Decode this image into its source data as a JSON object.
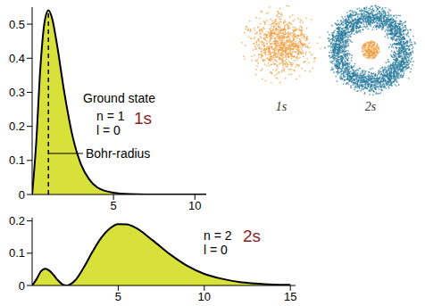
{
  "chart_data": [
    {
      "type": "area",
      "x": [
        0,
        0.25,
        0.5,
        0.75,
        1,
        1.25,
        1.5,
        2,
        2.5,
        3,
        3.5,
        4,
        5,
        6,
        7,
        8,
        9,
        10,
        10.7
      ],
      "values": [
        0,
        0.152,
        0.368,
        0.502,
        0.541,
        0.513,
        0.448,
        0.293,
        0.168,
        0.089,
        0.045,
        0.021,
        0.005,
        0.001,
        0,
        0,
        0,
        0,
        0
      ],
      "color": "#d8e03a",
      "xlim": [
        0,
        10.7
      ],
      "xticks": [
        5,
        10
      ],
      "ylim": [
        0,
        0.55
      ],
      "yticks": [
        0,
        0.1,
        0.2,
        0.3,
        0.4,
        0.5
      ],
      "grid": false,
      "annotations": [
        "Ground state",
        "n = 1",
        "l = 0"
      ],
      "orbital_label": "1s",
      "marker_line": {
        "label": "Bohr-radius",
        "x": 1
      }
    },
    {
      "type": "area",
      "x": [
        0,
        0.25,
        0.5,
        0.75,
        1,
        1.25,
        1.5,
        1.75,
        2,
        2.5,
        3,
        3.5,
        4,
        4.5,
        5,
        5.5,
        6,
        7,
        8,
        9,
        10,
        11,
        12,
        13,
        14,
        15
      ],
      "values": [
        0,
        0.019,
        0.043,
        0.052,
        0.046,
        0.032,
        0.016,
        0.004,
        0,
        0.016,
        0.056,
        0.104,
        0.147,
        0.176,
        0.19,
        0.189,
        0.179,
        0.14,
        0.097,
        0.061,
        0.036,
        0.021,
        0.011,
        0.006,
        0.003,
        0.002
      ],
      "color": "#d8e03a",
      "xlim": [
        0,
        15.3
      ],
      "xticks": [
        5,
        10,
        15
      ],
      "ylim": [
        0,
        0.21
      ],
      "yticks": [
        0,
        0.1,
        0.2
      ],
      "grid": false,
      "annotations": [
        "n = 2",
        "l = 0"
      ],
      "orbital_label": "2s"
    }
  ],
  "orbital_images": [
    {
      "label": "1s",
      "color": "#f0a043"
    },
    {
      "label": "2s",
      "color": "#2b7c9e",
      "core_color": "#f0a043"
    }
  ]
}
